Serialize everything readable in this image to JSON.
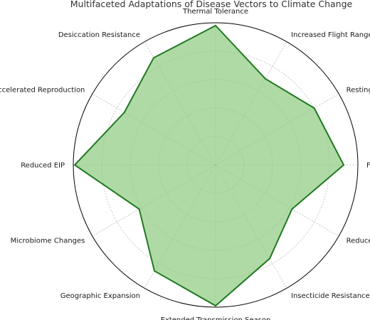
{
  "chart_data": {
    "type": "radar",
    "title": "Multifaceted Adaptations of Disease Vectors to Climate Change",
    "categories": [
      "Thermal Tolerance",
      "Increased Flight Range",
      "Resting Site Selection",
      "Feeding Pattern Shift",
      "Reduced Biocontrol Efficiency",
      "Insecticide Resistance",
      "Extended Transmission Season",
      "Geographic Expansion",
      "Microbiome Changes",
      "Reduced EIP",
      "Accelerated Reproduction",
      "Desiccation Resistance"
    ],
    "values": [
      0.98,
      0.7,
      0.8,
      0.9,
      0.62,
      0.76,
      0.99,
      0.86,
      0.62,
      0.99,
      0.74,
      0.87
    ],
    "rlim": [
      0,
      1
    ],
    "radial_gridlines": [
      0.2,
      0.4,
      0.6,
      0.8,
      1.0
    ],
    "grid": true,
    "colors": {
      "line": "#1f7a1f",
      "fill": "#90cc84",
      "grid": "#bdbdbd",
      "frame": "#000000"
    }
  }
}
